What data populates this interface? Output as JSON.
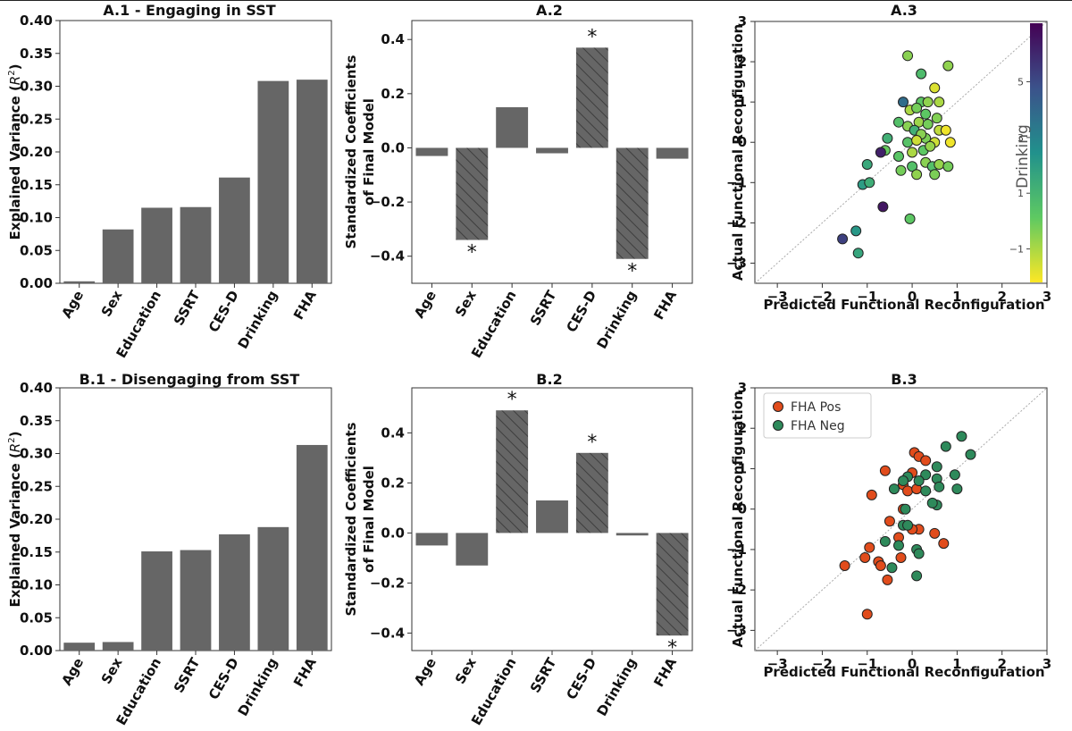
{
  "colors": {
    "bar": "#666666",
    "hatch": "#4a4a4a",
    "fha_pos": "#e14c1c",
    "fha_neg": "#2e8a5b",
    "axis": "#333333"
  },
  "chart_data": [
    {
      "id": "A1",
      "type": "bar",
      "title": "A.1 - Engaging in SST",
      "categories": [
        "Age",
        "Sex",
        "Education",
        "SSRT",
        "CES-D",
        "Drinking",
        "FHA"
      ],
      "values": [
        0.003,
        0.082,
        0.115,
        0.116,
        0.161,
        0.308,
        0.31
      ],
      "ylabel": "Explained Variance ($R^2$)",
      "ylabel_main": "Explained Variance (",
      "ylabel_base": "R",
      "ylabel_sup": "2",
      "ylabel_tail": ")",
      "ylim": [
        0,
        0.4
      ],
      "yticks": [
        0.0,
        0.05,
        0.1,
        0.15,
        0.2,
        0.25,
        0.3,
        0.35,
        0.4
      ],
      "ytick_labels": [
        "0.00",
        "0.05",
        "0.10",
        "0.15",
        "0.20",
        "0.25",
        "0.30",
        "0.35",
        "0.40"
      ]
    },
    {
      "id": "A2",
      "type": "bar",
      "title": "A.2",
      "categories": [
        "Age",
        "Sex",
        "Education",
        "SSRT",
        "CES-D",
        "Drinking",
        "FHA"
      ],
      "values": [
        -0.03,
        -0.34,
        0.15,
        -0.02,
        0.37,
        -0.41,
        -0.04
      ],
      "hatched": [
        false,
        true,
        false,
        false,
        true,
        true,
        false
      ],
      "significance": [
        "",
        "*",
        "",
        "",
        "*",
        "*",
        ""
      ],
      "ylabel": "Standardized Coefficients",
      "ylabel2": "of Final Model",
      "ylim": [
        -0.5,
        0.47
      ],
      "yticks": [
        -0.4,
        -0.2,
        0.0,
        0.2,
        0.4
      ],
      "ytick_labels": [
        "−0.4",
        "−0.2",
        "0.0",
        "0.2",
        "0.4"
      ]
    },
    {
      "id": "A3",
      "type": "scatter",
      "title": "A.3",
      "xlabel": "Predicted Functional Reconfiguration",
      "ylabel": "Actual Functional Reconfiguration",
      "xlim": [
        -3.5,
        3
      ],
      "ylim": [
        -3.5,
        3
      ],
      "ticks": [
        -3,
        -2,
        -1,
        0,
        1,
        2,
        3
      ],
      "tick_labels": [
        "−3",
        "−2",
        "−1",
        "0",
        "1",
        "2",
        "3"
      ],
      "colorbar": {
        "label": "Drinking",
        "min": -2.2,
        "max": 7.1,
        "ticks": [
          -1,
          1,
          3,
          5
        ],
        "tick_labels": [
          "−1",
          "1",
          "3",
          "5"
        ]
      },
      "points": [
        [
          -0.1,
          2.15,
          -0.5
        ],
        [
          0.2,
          1.7,
          0.7
        ],
        [
          0.8,
          1.9,
          -0.6
        ],
        [
          0.5,
          1.35,
          -1.7
        ],
        [
          -0.2,
          1.0,
          3.8
        ],
        [
          0.2,
          1.0,
          0.2
        ],
        [
          0.35,
          1.0,
          -0.6
        ],
        [
          -0.05,
          0.8,
          -1.0
        ],
        [
          0.1,
          0.85,
          -0.2
        ],
        [
          0.3,
          0.7,
          0.2
        ],
        [
          0.6,
          1.0,
          -1.0
        ],
        [
          0.55,
          0.6,
          -0.4
        ],
        [
          -0.3,
          0.5,
          0.5
        ],
        [
          -0.1,
          0.4,
          -0.5
        ],
        [
          0.15,
          0.5,
          -0.8
        ],
        [
          0.6,
          0.3,
          -1.3
        ],
        [
          0.75,
          0.3,
          -2.0
        ],
        [
          0.5,
          0.0,
          -1.5
        ],
        [
          0.85,
          0.0,
          -2.0
        ],
        [
          0.05,
          0.3,
          1.2
        ],
        [
          0.3,
          0.1,
          -0.3
        ],
        [
          0.25,
          -0.2,
          0.2
        ],
        [
          0.4,
          -0.1,
          -0.7
        ],
        [
          -0.55,
          0.1,
          1.2
        ],
        [
          -0.6,
          -0.2,
          0.0
        ],
        [
          -0.3,
          -0.35,
          0.3
        ],
        [
          0.0,
          -0.25,
          -1.0
        ],
        [
          0.3,
          -0.5,
          -0.5
        ],
        [
          0.45,
          -0.6,
          0.5
        ],
        [
          0.6,
          -0.55,
          -0.7
        ],
        [
          0.8,
          -0.6,
          -0.2
        ],
        [
          0.0,
          -0.6,
          0.5
        ],
        [
          -0.25,
          -0.7,
          -0.2
        ],
        [
          0.1,
          -0.8,
          -0.6
        ],
        [
          0.5,
          -0.8,
          -0.3
        ],
        [
          -1.0,
          -0.55,
          1.5
        ],
        [
          -0.7,
          -0.25,
          6.2
        ],
        [
          -1.1,
          -1.05,
          2.0
        ],
        [
          -0.95,
          -1.0,
          1.3
        ],
        [
          -0.65,
          -1.6,
          6.5
        ],
        [
          -0.05,
          -1.9,
          0.2
        ],
        [
          -1.25,
          -2.2,
          2.2
        ],
        [
          -1.55,
          -2.4,
          5.3
        ],
        [
          -1.2,
          -2.75,
          1.6
        ],
        [
          -0.1,
          0.0,
          0.4
        ],
        [
          0.2,
          0.2,
          -0.5
        ],
        [
          0.1,
          0.05,
          -1.5
        ],
        [
          0.35,
          0.45,
          -0.2
        ]
      ]
    },
    {
      "id": "B1",
      "type": "bar",
      "title": "B.1 - Disengaging from SST",
      "categories": [
        "Age",
        "Sex",
        "Education",
        "SSRT",
        "CES-D",
        "Drinking",
        "FHA"
      ],
      "values": [
        0.012,
        0.013,
        0.151,
        0.153,
        0.177,
        0.188,
        0.313
      ],
      "ylabel": "Explained Variance ($R^2$)",
      "ylabel_main": "Explained Variance (",
      "ylabel_base": "R",
      "ylabel_sup": "2",
      "ylabel_tail": ")",
      "ylim": [
        0,
        0.4
      ],
      "yticks": [
        0.0,
        0.05,
        0.1,
        0.15,
        0.2,
        0.25,
        0.3,
        0.35,
        0.4
      ],
      "ytick_labels": [
        "0.00",
        "0.05",
        "0.10",
        "0.15",
        "0.20",
        "0.25",
        "0.30",
        "0.35",
        "0.40"
      ]
    },
    {
      "id": "B2",
      "type": "bar",
      "title": "B.2",
      "categories": [
        "Age",
        "Sex",
        "Education",
        "SSRT",
        "CES-D",
        "Drinking",
        "FHA"
      ],
      "values": [
        -0.05,
        -0.13,
        0.49,
        0.13,
        0.32,
        -0.01,
        -0.41
      ],
      "hatched": [
        false,
        false,
        true,
        false,
        true,
        false,
        true
      ],
      "significance": [
        "",
        "",
        "*",
        "",
        "*",
        "",
        "*"
      ],
      "ylabel": "Standardized Coefficients",
      "ylabel2": "of Final Model",
      "ylim": [
        -0.47,
        0.58
      ],
      "yticks": [
        -0.4,
        -0.2,
        0.0,
        0.2,
        0.4
      ],
      "ytick_labels": [
        "−0.4",
        "−0.2",
        "0.0",
        "0.2",
        "0.4"
      ]
    },
    {
      "id": "B3",
      "type": "scatter",
      "title": "B.3",
      "xlabel": "Predicted Functional Reconfiguration",
      "ylabel": "Actual Functional Reconfiguration",
      "xlim": [
        -3.5,
        3
      ],
      "ylim": [
        -3.5,
        3
      ],
      "ticks": [
        -3,
        -2,
        -1,
        0,
        1,
        2,
        3
      ],
      "tick_labels": [
        "−3",
        "−2",
        "−1",
        "0",
        "1",
        "2",
        "3"
      ],
      "legend": [
        "FHA Pos",
        "FHA Neg"
      ],
      "series": [
        {
          "name": "FHA Pos",
          "points": [
            [
              0.05,
              1.4
            ],
            [
              0.15,
              1.3
            ],
            [
              0.3,
              1.2
            ],
            [
              -0.6,
              0.95
            ],
            [
              0.0,
              0.9
            ],
            [
              -0.2,
              0.6
            ],
            [
              -0.1,
              0.45
            ],
            [
              0.1,
              0.5
            ],
            [
              -0.9,
              0.35
            ],
            [
              -0.2,
              0.0
            ],
            [
              -0.5,
              -0.3
            ],
            [
              0.15,
              -0.5
            ],
            [
              -0.3,
              -0.7
            ],
            [
              0.5,
              -0.6
            ],
            [
              0.7,
              -0.85
            ],
            [
              -0.95,
              -0.95
            ],
            [
              -1.05,
              -1.2
            ],
            [
              -0.75,
              -1.3
            ],
            [
              -0.7,
              -1.4
            ],
            [
              -0.25,
              -1.2
            ],
            [
              -0.55,
              -1.75
            ],
            [
              -1.5,
              -1.4
            ],
            [
              -1.0,
              -2.6
            ],
            [
              0.0,
              -0.5
            ]
          ]
        },
        {
          "name": "FHA Neg",
          "points": [
            [
              1.1,
              1.8
            ],
            [
              0.75,
              1.55
            ],
            [
              1.3,
              1.35
            ],
            [
              0.55,
              1.05
            ],
            [
              0.95,
              0.85
            ],
            [
              0.3,
              0.85
            ],
            [
              0.55,
              0.75
            ],
            [
              -0.1,
              0.8
            ],
            [
              -0.2,
              0.7
            ],
            [
              0.15,
              0.7
            ],
            [
              0.3,
              0.45
            ],
            [
              0.6,
              0.55
            ],
            [
              1.0,
              0.5
            ],
            [
              -0.4,
              0.5
            ],
            [
              0.55,
              0.1
            ],
            [
              0.45,
              0.15
            ],
            [
              -0.15,
              0.0
            ],
            [
              -0.2,
              -0.4
            ],
            [
              -0.1,
              -0.4
            ],
            [
              -0.6,
              -0.8
            ],
            [
              -0.3,
              -0.9
            ],
            [
              0.1,
              -1.0
            ],
            [
              0.15,
              -1.1
            ],
            [
              0.1,
              -1.65
            ],
            [
              -0.45,
              -1.45
            ]
          ]
        }
      ]
    }
  ]
}
